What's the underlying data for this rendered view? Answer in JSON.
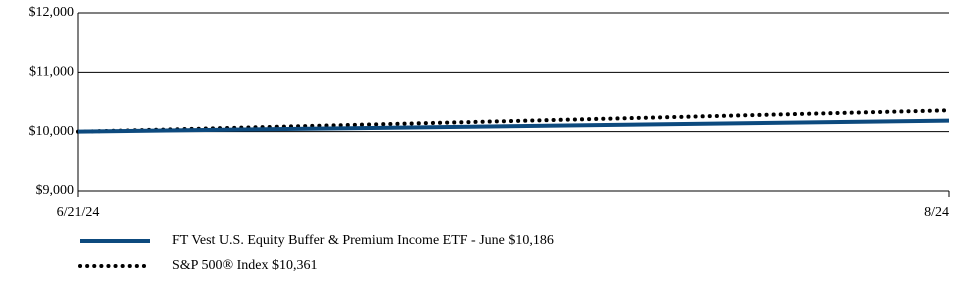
{
  "chart_data": {
    "type": "line",
    "categories": [
      "6/21/24",
      "8/24"
    ],
    "series": [
      {
        "name": "FT Vest U.S. Equity Buffer & Premium Income ETF - June $10,186",
        "color": "#0d4a7e",
        "style": "solid",
        "values": [
          10000,
          10186
        ]
      },
      {
        "name": "S&P 500® Index $10,361",
        "color": "#000000",
        "style": "dotted",
        "values": [
          10000,
          10361
        ]
      }
    ],
    "ylim": [
      9000,
      12000
    ],
    "yticks": [
      {
        "value": 9000,
        "label": "$9,000"
      },
      {
        "value": 10000,
        "label": "$10,000"
      },
      {
        "value": 11000,
        "label": "$11,000"
      },
      {
        "value": 12000,
        "label": "$12,000"
      }
    ],
    "grid": true
  }
}
